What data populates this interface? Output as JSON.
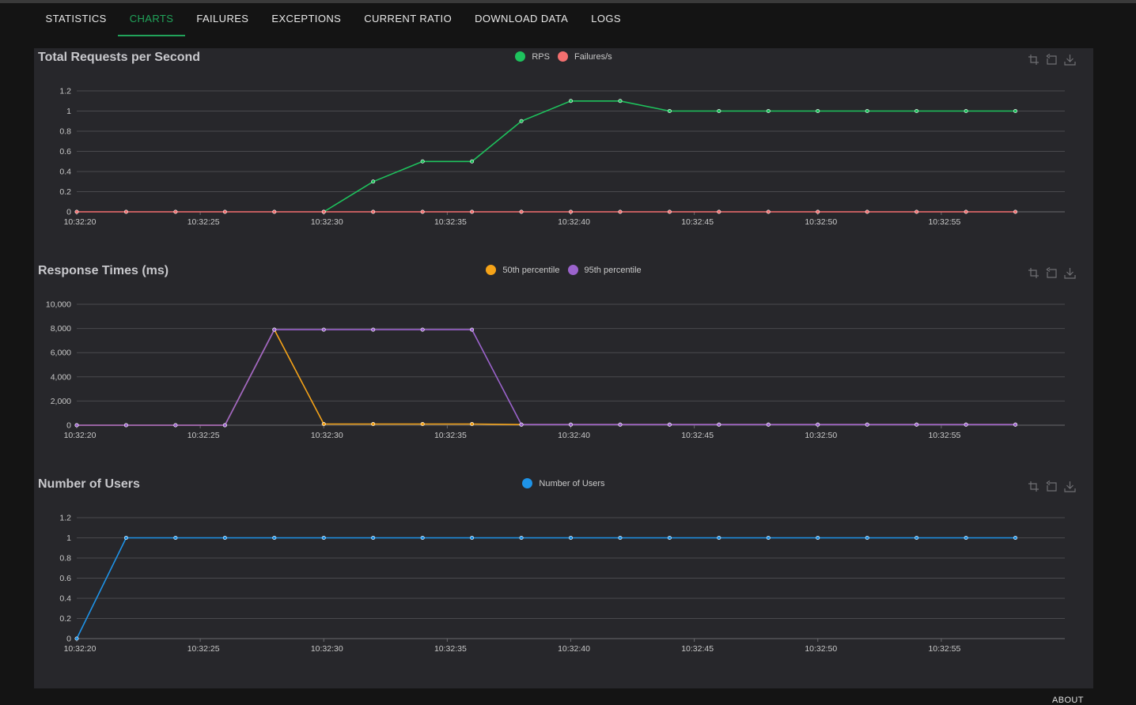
{
  "tabs": [
    {
      "label": "STATISTICS",
      "active": false
    },
    {
      "label": "CHARTS",
      "active": true
    },
    {
      "label": "FAILURES",
      "active": false
    },
    {
      "label": "EXCEPTIONS",
      "active": false
    },
    {
      "label": "CURRENT RATIO",
      "active": false
    },
    {
      "label": "DOWNLOAD DATA",
      "active": false
    },
    {
      "label": "LOGS",
      "active": false
    }
  ],
  "colors": {
    "active_tab": "#21a35a",
    "rps": "#1ec25d",
    "failures": "#f36f6f",
    "p50": "#f5a318",
    "p95": "#9b63cc",
    "users": "#1e93e8",
    "grid": "#4a4a4e"
  },
  "toolbox_icons": [
    "zoom-icon",
    "zoom-reset-icon",
    "download-icon"
  ],
  "footer": {
    "about_label": "ABOUT"
  },
  "chart_data": [
    {
      "type": "line",
      "title": "Total Requests per Second",
      "x_ticks": [
        "10:32:20",
        "10:32:25",
        "10:32:30",
        "10:32:35",
        "10:32:40",
        "10:32:45",
        "10:32:50",
        "10:32:55"
      ],
      "x": [
        "10:32:20",
        "10:32:22",
        "10:32:24",
        "10:32:26",
        "10:32:28",
        "10:32:30",
        "10:32:32",
        "10:32:34",
        "10:32:36",
        "10:32:38",
        "10:32:40",
        "10:32:42",
        "10:32:44",
        "10:32:46",
        "10:32:48",
        "10:32:50",
        "10:32:52",
        "10:32:54",
        "10:32:56",
        "10:32:58"
      ],
      "y_ticks": [
        "0",
        "0.2",
        "0.4",
        "0.6",
        "0.8",
        "1",
        "1.2"
      ],
      "ylim": [
        0,
        1.2
      ],
      "series": [
        {
          "name": "RPS",
          "color": "#1ec25d",
          "values": [
            null,
            null,
            null,
            null,
            null,
            0,
            0.3,
            0.5,
            0.5,
            0.9,
            1.1,
            1.1,
            1,
            1,
            1,
            1,
            1,
            1,
            1,
            1
          ]
        },
        {
          "name": "Failures/s",
          "color": "#f36f6f",
          "values": [
            0,
            0,
            0,
            0,
            0,
            0,
            0,
            0,
            0,
            0,
            0,
            0,
            0,
            0,
            0,
            0,
            0,
            0,
            0,
            0
          ]
        }
      ]
    },
    {
      "type": "line",
      "title": "Response Times (ms)",
      "x_ticks": [
        "10:32:20",
        "10:32:25",
        "10:32:30",
        "10:32:35",
        "10:32:40",
        "10:32:45",
        "10:32:50",
        "10:32:55"
      ],
      "x": [
        "10:32:20",
        "10:32:22",
        "10:32:24",
        "10:32:26",
        "10:32:28",
        "10:32:30",
        "10:32:32",
        "10:32:34",
        "10:32:36",
        "10:32:38",
        "10:32:40",
        "10:32:42",
        "10:32:44",
        "10:32:46",
        "10:32:48",
        "10:32:50",
        "10:32:52",
        "10:32:54",
        "10:32:56",
        "10:32:58"
      ],
      "y_ticks": [
        "0",
        "2,000",
        "4,000",
        "6,000",
        "8,000",
        "10,000"
      ],
      "ylim": [
        0,
        10000
      ],
      "series": [
        {
          "name": "50th percentile",
          "color": "#f5a318",
          "values": [
            0,
            0,
            0,
            0,
            7900,
            100,
            100,
            100,
            100,
            50,
            50,
            50,
            50,
            50,
            50,
            50,
            50,
            50,
            50,
            50
          ]
        },
        {
          "name": "95th percentile",
          "color": "#9b63cc",
          "values": [
            0,
            0,
            0,
            0,
            7900,
            7900,
            7900,
            7900,
            7900,
            50,
            50,
            50,
            50,
            50,
            50,
            50,
            50,
            50,
            50,
            50
          ]
        }
      ]
    },
    {
      "type": "line",
      "title": "Number of Users",
      "x_ticks": [
        "10:32:20",
        "10:32:25",
        "10:32:30",
        "10:32:35",
        "10:32:40",
        "10:32:45",
        "10:32:50",
        "10:32:55"
      ],
      "x": [
        "10:32:20",
        "10:32:22",
        "10:32:24",
        "10:32:26",
        "10:32:28",
        "10:32:30",
        "10:32:32",
        "10:32:34",
        "10:32:36",
        "10:32:38",
        "10:32:40",
        "10:32:42",
        "10:32:44",
        "10:32:46",
        "10:32:48",
        "10:32:50",
        "10:32:52",
        "10:32:54",
        "10:32:56",
        "10:32:58"
      ],
      "y_ticks": [
        "0",
        "0.2",
        "0.4",
        "0.6",
        "0.8",
        "1",
        "1.2"
      ],
      "ylim": [
        0,
        1.2
      ],
      "series": [
        {
          "name": "Number of Users",
          "color": "#1e93e8",
          "values": [
            0,
            1,
            1,
            1,
            1,
            1,
            1,
            1,
            1,
            1,
            1,
            1,
            1,
            1,
            1,
            1,
            1,
            1,
            1,
            1
          ]
        }
      ]
    }
  ]
}
